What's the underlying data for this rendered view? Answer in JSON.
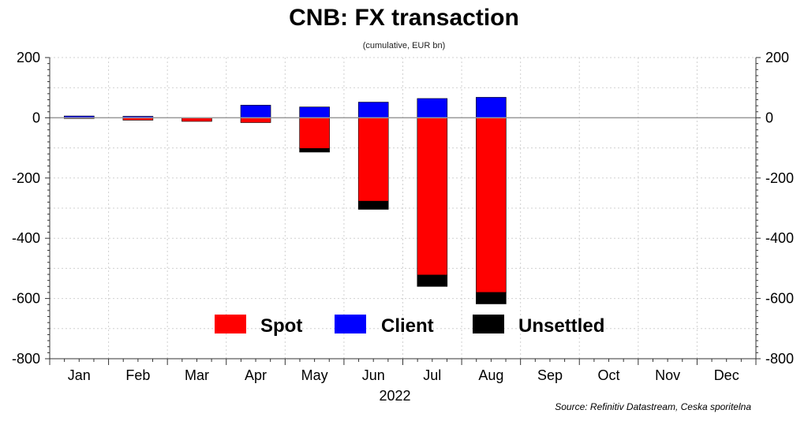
{
  "chart_data": {
    "type": "bar",
    "stacked": true,
    "title": "CNB: FX transaction",
    "subtitle": "(cumulative, EUR bn)",
    "xlabel": "2022",
    "ylabel": "",
    "source": "Source: Refinitiv Datastream, Ceska sporitelna",
    "categories": [
      "Jan",
      "Feb",
      "Mar",
      "Apr",
      "May",
      "Jun",
      "Jul",
      "Aug",
      "Sep",
      "Oct",
      "Nov",
      "Dec"
    ],
    "series": [
      {
        "name": "Spot",
        "color": "#ff0000",
        "values": [
          -2,
          -8,
          -12,
          -16,
          -102,
          -277,
          -522,
          -580,
          null,
          null,
          null,
          null
        ]
      },
      {
        "name": "Client",
        "color": "#0000ff",
        "values": [
          6,
          5,
          0,
          42,
          36,
          52,
          64,
          68,
          null,
          null,
          null,
          null
        ]
      },
      {
        "name": "Unsettled",
        "color": "#000000",
        "values": [
          0,
          0,
          0,
          0,
          -12,
          -27,
          -38,
          -38,
          null,
          null,
          null,
          null
        ]
      }
    ],
    "ylim": [
      -800,
      200
    ],
    "yticks": [
      200,
      0,
      -200,
      -400,
      -600,
      -800
    ],
    "grid": true,
    "legend_position": "bottom-center"
  }
}
